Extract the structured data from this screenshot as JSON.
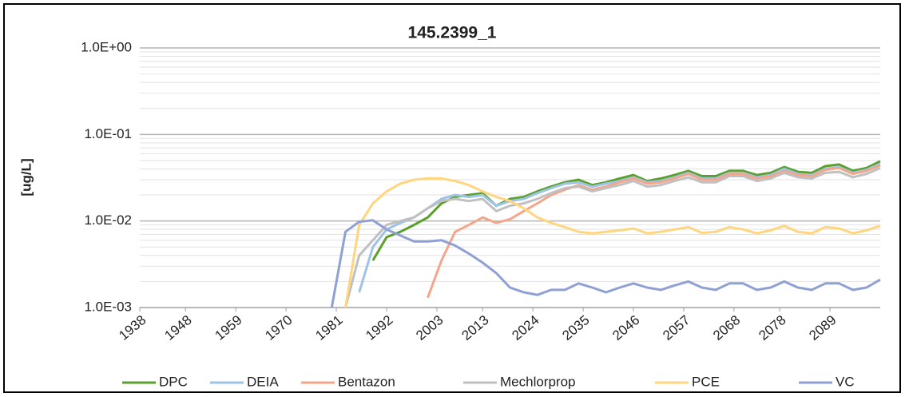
{
  "chart_data": {
    "type": "line",
    "title": "145.2399_1",
    "y_label": "[ug/L]",
    "log_y": true,
    "grid": true,
    "minor_grid": true,
    "legend": "bottom",
    "xlim": [
      1938,
      2100
    ],
    "xticks": [
      1938,
      1948,
      1959,
      1970,
      1981,
      1992,
      2003,
      2013,
      2024,
      2035,
      2046,
      2057,
      2068,
      2078,
      2089
    ],
    "ylim": [
      0.001,
      1
    ],
    "yticks": [
      {
        "value": 0.001,
        "label": "1.0E-03"
      },
      {
        "value": 0.01,
        "label": "1.0E-02"
      },
      {
        "value": 0.1,
        "label": "1.0E-01"
      },
      {
        "value": 1,
        "label": "1.0E+00"
      }
    ],
    "x": [
      1980,
      1983,
      1986,
      1989,
      1992,
      1995,
      1998,
      2001,
      2004,
      2007,
      2010,
      2013,
      2016,
      2019,
      2022,
      2025,
      2028,
      2031,
      2034,
      2037,
      2040,
      2043,
      2046,
      2049,
      2052,
      2055,
      2058,
      2061,
      2064,
      2067,
      2070,
      2073,
      2076,
      2079,
      2082,
      2085,
      2088,
      2091,
      2094,
      2097,
      2100
    ],
    "series": [
      {
        "name": "DPC",
        "color": "#5aa02c",
        "values": [
          null,
          null,
          null,
          0.0035,
          0.0065,
          0.0075,
          0.009,
          0.011,
          0.016,
          0.019,
          0.02,
          0.021,
          0.015,
          0.018,
          0.019,
          0.022,
          0.025,
          0.028,
          0.03,
          0.026,
          0.028,
          0.031,
          0.034,
          0.029,
          0.031,
          0.034,
          0.038,
          0.033,
          0.033,
          0.038,
          0.038,
          0.034,
          0.036,
          0.042,
          0.037,
          0.036,
          0.043,
          0.045,
          0.038,
          0.041,
          0.049
        ]
      },
      {
        "name": "DEIA",
        "color": "#9dc3e6",
        "values": [
          null,
          null,
          0.0015,
          0.005,
          0.008,
          0.0095,
          0.011,
          0.014,
          0.018,
          0.02,
          0.019,
          0.02,
          0.015,
          0.017,
          0.018,
          0.021,
          0.024,
          0.027,
          0.028,
          0.025,
          0.027,
          0.029,
          0.032,
          0.028,
          0.029,
          0.032,
          0.036,
          0.031,
          0.031,
          0.036,
          0.036,
          0.032,
          0.034,
          0.04,
          0.035,
          0.034,
          0.04,
          0.042,
          0.036,
          0.039,
          0.046
        ]
      },
      {
        "name": "Bentazon",
        "color": "#f4a58a",
        "values": [
          null,
          null,
          null,
          null,
          null,
          null,
          null,
          0.0013,
          0.0035,
          0.0075,
          0.009,
          0.011,
          0.0095,
          0.0105,
          0.013,
          0.016,
          0.02,
          0.023,
          0.026,
          0.023,
          0.025,
          0.028,
          0.031,
          0.027,
          0.028,
          0.031,
          0.035,
          0.03,
          0.03,
          0.035,
          0.035,
          0.031,
          0.033,
          0.038,
          0.034,
          0.033,
          0.039,
          0.041,
          0.035,
          0.038,
          0.044
        ]
      },
      {
        "name": "Mechlorprop",
        "color": "#c0c0c0",
        "values": [
          null,
          0.001,
          0.004,
          0.006,
          0.009,
          0.01,
          0.011,
          0.014,
          0.017,
          0.018,
          0.017,
          0.018,
          0.013,
          0.015,
          0.016,
          0.018,
          0.021,
          0.024,
          0.025,
          0.022,
          0.024,
          0.026,
          0.029,
          0.025,
          0.026,
          0.029,
          0.032,
          0.028,
          0.028,
          0.033,
          0.033,
          0.029,
          0.031,
          0.036,
          0.032,
          0.031,
          0.036,
          0.037,
          0.032,
          0.035,
          0.041
        ]
      },
      {
        "name": "PCE",
        "color": "#ffd57e",
        "values": [
          null,
          0.001,
          0.009,
          0.016,
          0.022,
          0.027,
          0.03,
          0.031,
          0.031,
          0.029,
          0.026,
          0.022,
          0.019,
          0.017,
          0.014,
          0.011,
          0.0095,
          0.0085,
          0.0075,
          0.0072,
          0.0075,
          0.0078,
          0.0082,
          0.0072,
          0.0075,
          0.008,
          0.0085,
          0.0073,
          0.0075,
          0.0085,
          0.008,
          0.0072,
          0.0078,
          0.0088,
          0.0075,
          0.0072,
          0.0085,
          0.0082,
          0.0072,
          0.0078,
          0.0088
        ]
      },
      {
        "name": "VC",
        "color": "#8ea0d4",
        "values": [
          0.001,
          0.0075,
          0.0098,
          0.0102,
          0.008,
          0.0068,
          0.0058,
          0.0058,
          0.006,
          0.0052,
          0.0042,
          0.0033,
          0.0025,
          0.0017,
          0.0015,
          0.0014,
          0.0016,
          0.0016,
          0.0019,
          0.0017,
          0.0015,
          0.0017,
          0.0019,
          0.0017,
          0.0016,
          0.0018,
          0.002,
          0.0017,
          0.0016,
          0.0019,
          0.0019,
          0.0016,
          0.0017,
          0.002,
          0.0017,
          0.0016,
          0.0019,
          0.0019,
          0.0016,
          0.0017,
          0.0021
        ]
      }
    ]
  }
}
